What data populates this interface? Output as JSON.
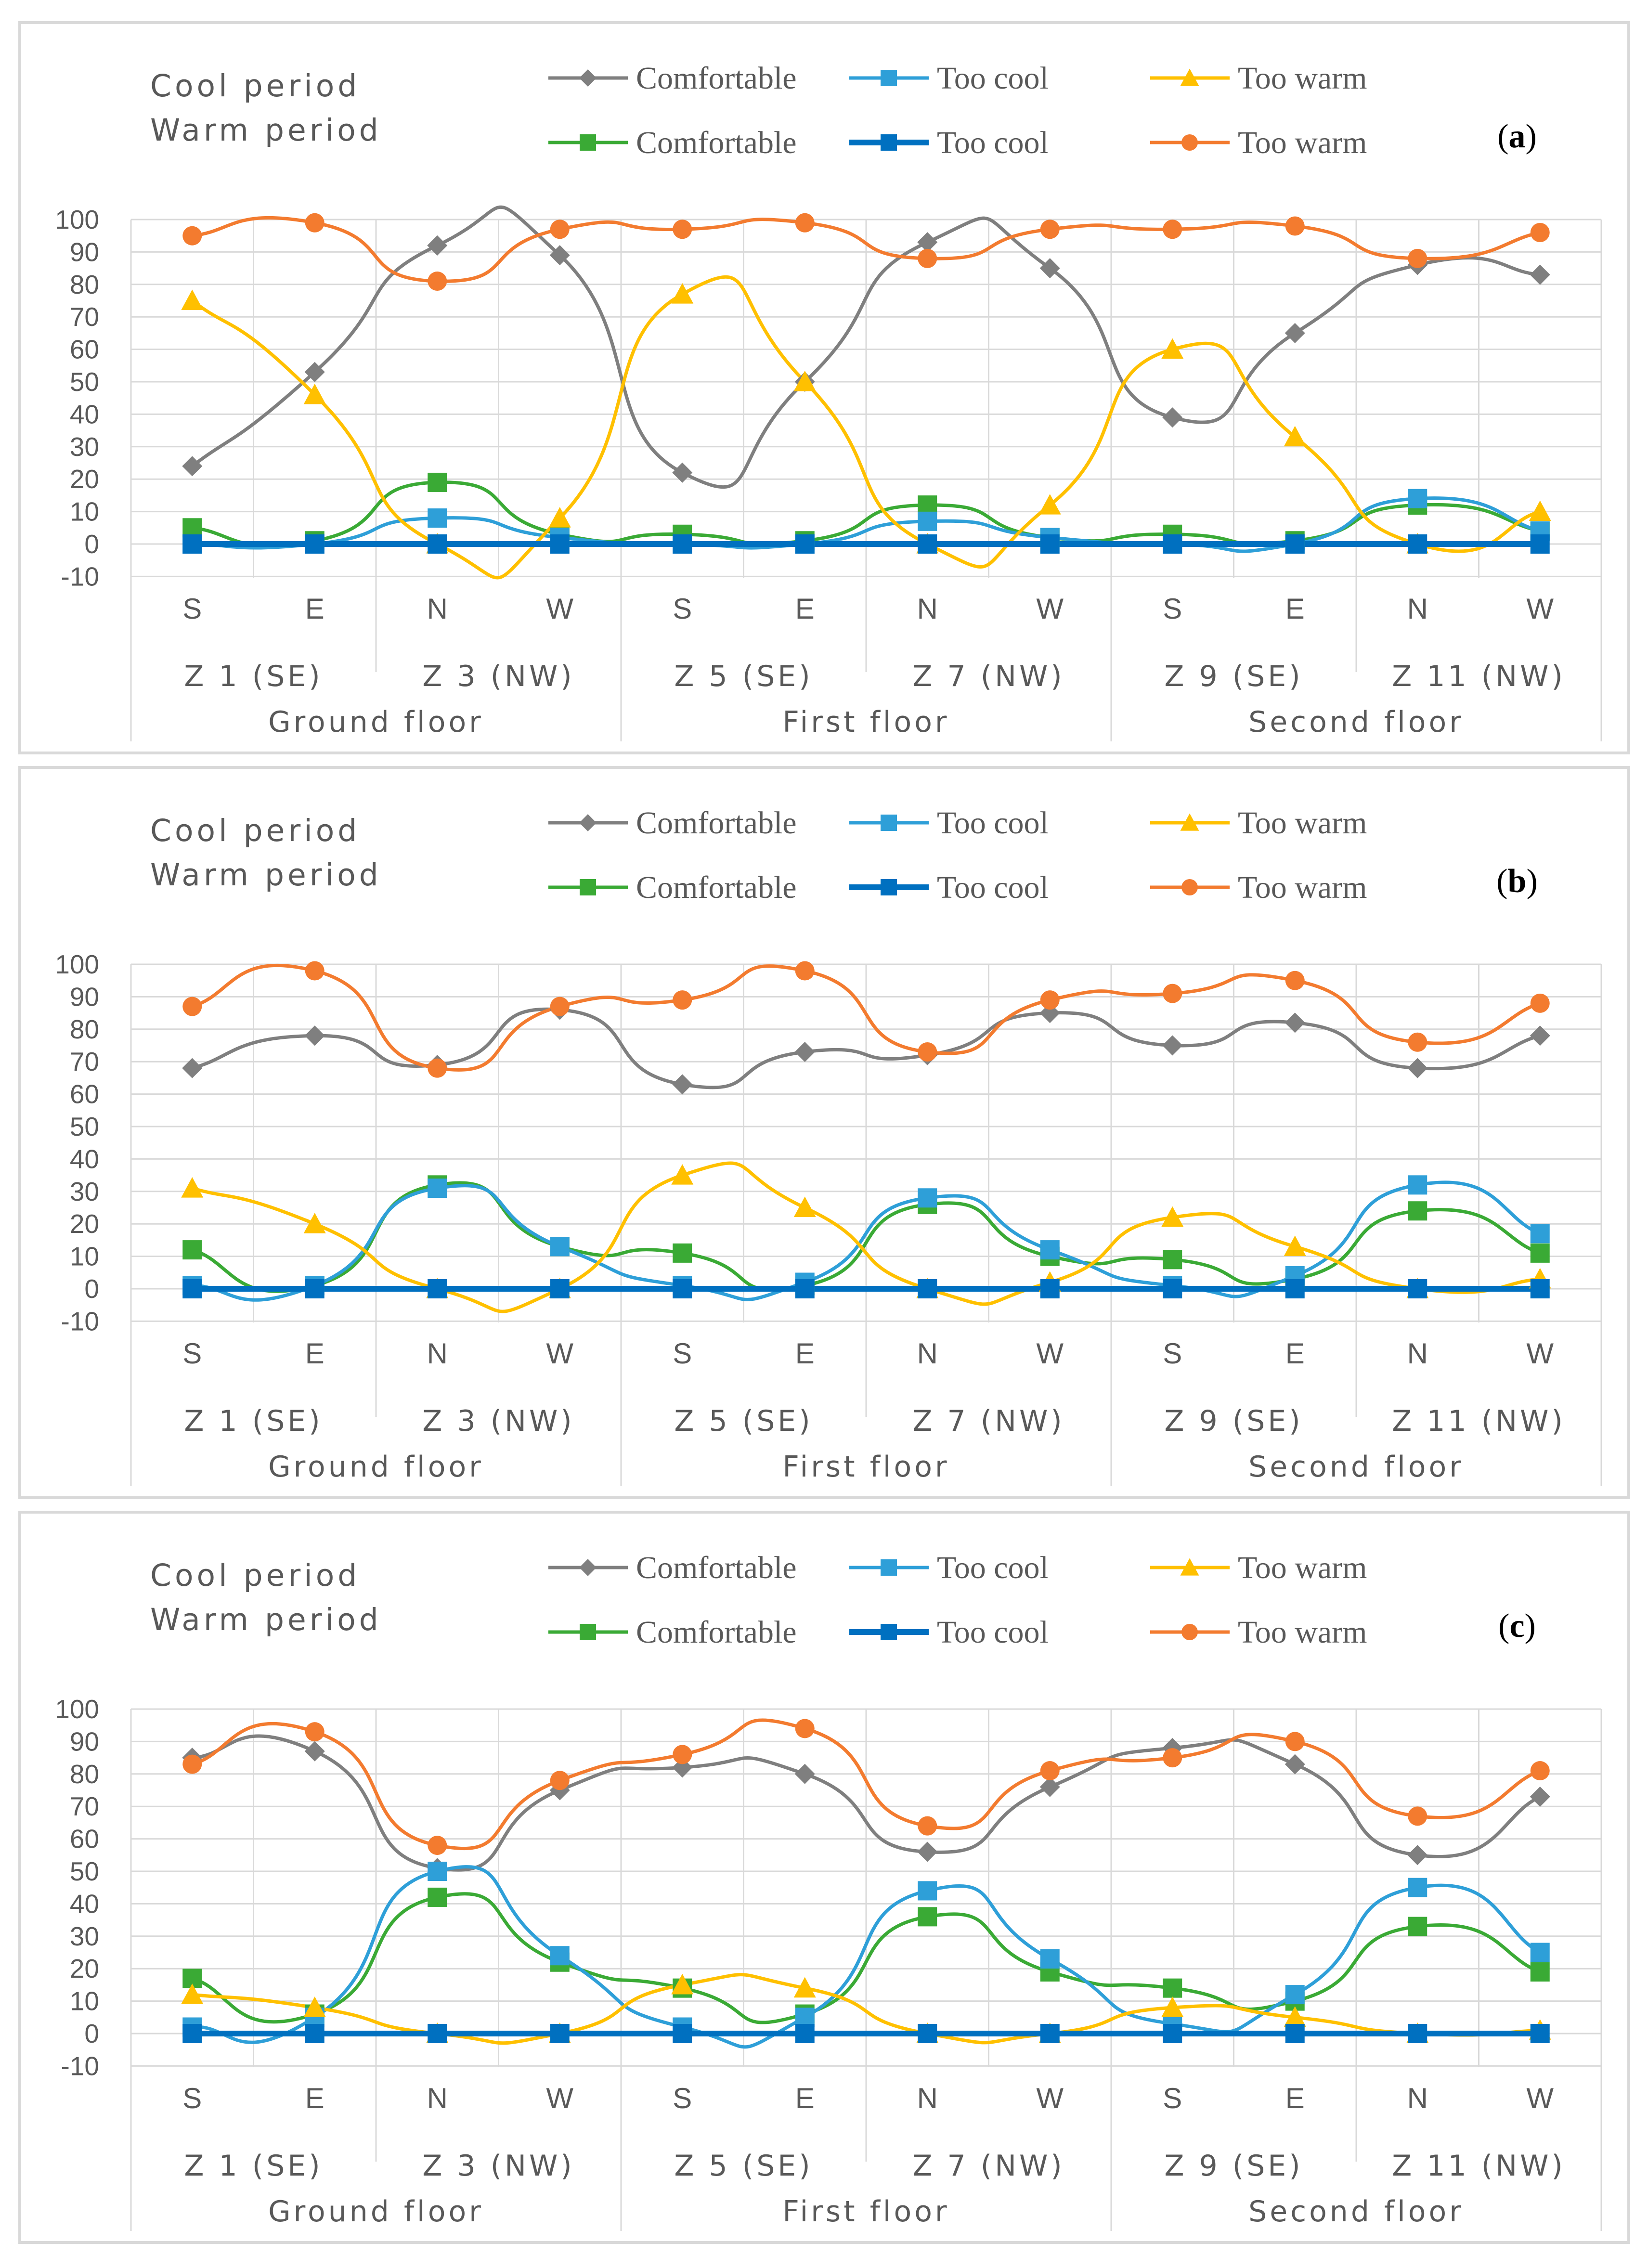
{
  "legend_headers": [
    "Cool period",
    "Warm period"
  ],
  "chart_data": [
    {
      "type": "line",
      "panel_label": "a",
      "categories": [
        "S",
        "E",
        "N",
        "W",
        "S",
        "E",
        "N",
        "W",
        "S",
        "E",
        "N",
        "W"
      ],
      "zones": [
        "Z 1 (SE)",
        "Z 3 (NW)",
        "Z 5 (SE)",
        "Z 7 (NW)",
        "Z 9 (SE)",
        "Z 11 (NW)"
      ],
      "floors": [
        "Ground floor",
        "First floor",
        "Second floor"
      ],
      "ylim": [
        -10,
        100
      ],
      "yticks": [
        "-10",
        "0",
        "10",
        "20",
        "30",
        "40",
        "50",
        "60",
        "70",
        "80",
        "90",
        "100"
      ],
      "grid": true,
      "series": [
        {
          "name": "Comfortable",
          "period": "cool",
          "marker": "diamond",
          "color": "#7f7f7f",
          "values": [
            24,
            53,
            92,
            89,
            22,
            50,
            93,
            85,
            39,
            65,
            86,
            83
          ]
        },
        {
          "name": "Too cool",
          "period": "cool",
          "marker": "square",
          "color": "#2e9fd8",
          "values": [
            0,
            0,
            8,
            2,
            0,
            0,
            7,
            2,
            0,
            0,
            14,
            4
          ]
        },
        {
          "name": "Too warm",
          "period": "cool",
          "marker": "triangle",
          "color": "#ffc000",
          "values": [
            75,
            46,
            0,
            8,
            77,
            50,
            0,
            12,
            60,
            33,
            0,
            10
          ]
        },
        {
          "name": "Comfortable",
          "period": "warm",
          "marker": "square",
          "color": "#3aaa35",
          "values": [
            5,
            1,
            19,
            3,
            3,
            1,
            12,
            2,
            3,
            1,
            12,
            4
          ]
        },
        {
          "name": "Too cool",
          "period": "warm",
          "marker": "square",
          "color": "#0070c0",
          "values": [
            0,
            0,
            0,
            0,
            0,
            0,
            0,
            0,
            0,
            0,
            0,
            0
          ]
        },
        {
          "name": "Too warm",
          "period": "warm",
          "marker": "circle",
          "color": "#f37b2f",
          "values": [
            95,
            99,
            81,
            97,
            97,
            99,
            88,
            97,
            97,
            98,
            88,
            96
          ]
        }
      ]
    },
    {
      "type": "line",
      "panel_label": "b",
      "categories": [
        "S",
        "E",
        "N",
        "W",
        "S",
        "E",
        "N",
        "W",
        "S",
        "E",
        "N",
        "W"
      ],
      "zones": [
        "Z 1 (SE)",
        "Z 3 (NW)",
        "Z 5 (SE)",
        "Z 7 (NW)",
        "Z 9 (SE)",
        "Z 11 (NW)"
      ],
      "floors": [
        "Ground floor",
        "First floor",
        "Second floor"
      ],
      "ylim": [
        -10,
        100
      ],
      "yticks": [
        "-10",
        "0",
        "10",
        "20",
        "30",
        "40",
        "50",
        "60",
        "70",
        "80",
        "90",
        "100"
      ],
      "grid": true,
      "series": [
        {
          "name": "Comfortable",
          "period": "cool",
          "marker": "diamond",
          "color": "#7f7f7f",
          "values": [
            68,
            78,
            69,
            86,
            63,
            73,
            72,
            85,
            75,
            82,
            68,
            78
          ]
        },
        {
          "name": "Too cool",
          "period": "cool",
          "marker": "square",
          "color": "#2e9fd8",
          "values": [
            1,
            1,
            31,
            13,
            1,
            2,
            28,
            12,
            1,
            4,
            32,
            17
          ]
        },
        {
          "name": "Too warm",
          "period": "cool",
          "marker": "triangle",
          "color": "#ffc000",
          "values": [
            31,
            20,
            0,
            0,
            35,
            25,
            0,
            2,
            22,
            13,
            0,
            3
          ]
        },
        {
          "name": "Comfortable",
          "period": "warm",
          "marker": "square",
          "color": "#3aaa35",
          "values": [
            12,
            1,
            32,
            13,
            11,
            1,
            26,
            10,
            9,
            3,
            24,
            11
          ]
        },
        {
          "name": "Too cool",
          "period": "warm",
          "marker": "square",
          "color": "#0070c0",
          "values": [
            0,
            0,
            0,
            0,
            0,
            0,
            0,
            0,
            0,
            0,
            0,
            0
          ]
        },
        {
          "name": "Too warm",
          "period": "warm",
          "marker": "circle",
          "color": "#f37b2f",
          "values": [
            87,
            98,
            68,
            87,
            89,
            98,
            73,
            89,
            91,
            95,
            76,
            88
          ]
        }
      ]
    },
    {
      "type": "line",
      "panel_label": "c",
      "categories": [
        "S",
        "E",
        "N",
        "W",
        "S",
        "E",
        "N",
        "W",
        "S",
        "E",
        "N",
        "W"
      ],
      "zones": [
        "Z 1 (SE)",
        "Z 3 (NW)",
        "Z 5 (SE)",
        "Z 7 (NW)",
        "Z 9 (SE)",
        "Z 11 (NW)"
      ],
      "floors": [
        "Ground floor",
        "First floor",
        "Second floor"
      ],
      "ylim": [
        -10,
        100
      ],
      "yticks": [
        "-10",
        "0",
        "10",
        "20",
        "30",
        "40",
        "50",
        "60",
        "70",
        "80",
        "90",
        "100"
      ],
      "grid": true,
      "series": [
        {
          "name": "Comfortable",
          "period": "cool",
          "marker": "diamond",
          "color": "#7f7f7f",
          "values": [
            85,
            87,
            51,
            75,
            82,
            80,
            56,
            76,
            88,
            83,
            55,
            73
          ]
        },
        {
          "name": "Too cool",
          "period": "cool",
          "marker": "square",
          "color": "#2e9fd8",
          "values": [
            2,
            5,
            50,
            24,
            2,
            5,
            44,
            23,
            3,
            12,
            45,
            25
          ]
        },
        {
          "name": "Too warm",
          "period": "cool",
          "marker": "triangle",
          "color": "#ffc000",
          "values": [
            12,
            8,
            0,
            0,
            15,
            14,
            0,
            0,
            8,
            5,
            0,
            1
          ]
        },
        {
          "name": "Comfortable",
          "period": "warm",
          "marker": "square",
          "color": "#3aaa35",
          "values": [
            17,
            6,
            42,
            22,
            14,
            6,
            36,
            19,
            14,
            10,
            33,
            19
          ]
        },
        {
          "name": "Too cool",
          "period": "warm",
          "marker": "square",
          "color": "#0070c0",
          "values": [
            0,
            0,
            0,
            0,
            0,
            0,
            0,
            0,
            0,
            0,
            0,
            0
          ]
        },
        {
          "name": "Too warm",
          "period": "warm",
          "marker": "circle",
          "color": "#f37b2f",
          "values": [
            83,
            93,
            58,
            78,
            86,
            94,
            64,
            81,
            85,
            90,
            67,
            81
          ]
        }
      ]
    }
  ]
}
